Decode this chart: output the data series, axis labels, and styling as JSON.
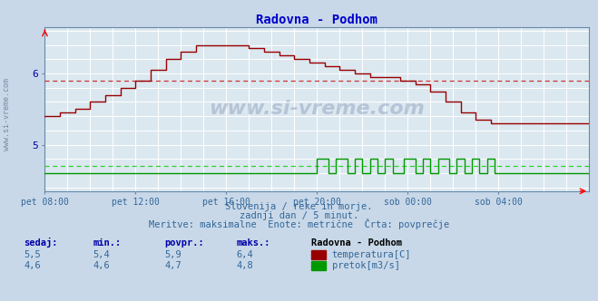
{
  "title": "Radovna - Podhom",
  "title_color": "#0000cc",
  "bg_color": "#c8d8e8",
  "plot_bg_color": "#dce8f0",
  "grid_color": "#ffffff",
  "axis_color": "#6688aa",
  "xlabel_color": "#336699",
  "ylabel_color": "#0000aa",
  "text_color": "#336699",
  "xlim": [
    0,
    288
  ],
  "ylim": [
    4.35,
    6.65
  ],
  "yticks": [
    5.0,
    6.0
  ],
  "xtick_labels": [
    "pet 08:00",
    "pet 12:00",
    "pet 16:00",
    "pet 20:00",
    "sob 00:00",
    "sob 04:00"
  ],
  "xtick_positions": [
    0,
    48,
    96,
    144,
    192,
    240
  ],
  "temp_avg": 5.9,
  "flow_avg": 4.7,
  "temp_color": "#990000",
  "flow_color": "#009900",
  "temp_dashed_color": "#cc3333",
  "flow_dashed_color": "#33cc33",
  "watermark": "www.si-vreme.com",
  "left_watermark": "www.si-vreme.com",
  "subtitle1": "Slovenija / reke in morje.",
  "subtitle2": "zadnji dan / 5 minut.",
  "subtitle3": "Meritve: maksimalne  Enote: metrične  Črta: povprečje",
  "legend_title": "Radovna - Podhom",
  "legend_temp": "temperatura[C]",
  "legend_flow": "pretok[m3/s]",
  "stats_headers": [
    "sedaj:",
    "min.:",
    "povpr.:",
    "maks.:"
  ],
  "temp_stats": [
    "5,5",
    "5,4",
    "5,9",
    "6,4"
  ],
  "flow_stats": [
    "4,6",
    "4,6",
    "4,7",
    "4,8"
  ]
}
